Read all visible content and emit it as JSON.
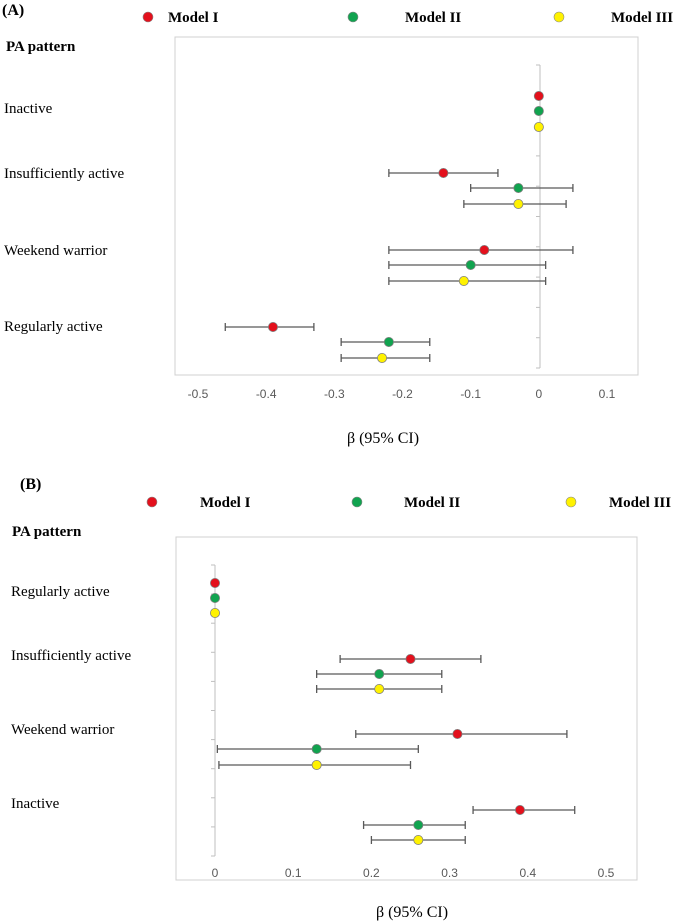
{
  "chart_data": [
    {
      "type": "scatter",
      "panel_label": "(A)",
      "row_header": "PA pattern",
      "xlabel": "β (95% CI)",
      "xlim": [
        -0.5,
        0.1
      ],
      "x_ticks": [
        "-0.5",
        "-0.4",
        "-0.3",
        "-0.2",
        "-0.1",
        "0",
        "0.1"
      ],
      "tick_values": [
        -0.5,
        -0.4,
        -0.3,
        -0.2,
        -0.1,
        0,
        0.1
      ],
      "categories": [
        "Inactive",
        "Insufficiently active",
        "Weekend warrior",
        "Regularly active"
      ],
      "legend": [
        "Model I",
        "Model II",
        "Model III"
      ],
      "colors": [
        "#e3101c",
        "#11a34f",
        "#fff200"
      ],
      "series": [
        {
          "name": "Model I",
          "values": [
            {
              "est": 0,
              "lo": null,
              "hi": null
            },
            {
              "est": -0.14,
              "lo": -0.22,
              "hi": -0.06
            },
            {
              "est": -0.08,
              "lo": -0.22,
              "hi": 0.05
            },
            {
              "est": -0.39,
              "lo": -0.46,
              "hi": -0.33
            }
          ]
        },
        {
          "name": "Model II",
          "values": [
            {
              "est": 0,
              "lo": null,
              "hi": null
            },
            {
              "est": -0.03,
              "lo": -0.1,
              "hi": 0.05
            },
            {
              "est": -0.1,
              "lo": -0.22,
              "hi": 0.01
            },
            {
              "est": -0.22,
              "lo": -0.29,
              "hi": -0.16
            }
          ]
        },
        {
          "name": "Model III",
          "values": [
            {
              "est": 0,
              "lo": null,
              "hi": null
            },
            {
              "est": -0.03,
              "lo": -0.11,
              "hi": 0.04
            },
            {
              "est": -0.11,
              "lo": -0.22,
              "hi": 0.01
            },
            {
              "est": -0.23,
              "lo": -0.29,
              "hi": -0.16
            }
          ]
        }
      ]
    },
    {
      "type": "scatter",
      "panel_label": "(B)",
      "row_header": "PA pattern",
      "xlabel": "β (95% CI)",
      "xlim": [
        0,
        0.5
      ],
      "x_ticks": [
        "0",
        "0.1",
        "0.2",
        "0.3",
        "0.4",
        "0.5"
      ],
      "tick_values": [
        0,
        0.1,
        0.2,
        0.3,
        0.4,
        0.5
      ],
      "categories": [
        "Regularly active",
        "Insufficiently active",
        "Weekend warrior",
        "Inactive"
      ],
      "legend": [
        "Model I",
        "Model II",
        "Model III"
      ],
      "colors": [
        "#e3101c",
        "#11a34f",
        "#fff200"
      ],
      "series": [
        {
          "name": "Model I",
          "values": [
            {
              "est": 0,
              "lo": null,
              "hi": null
            },
            {
              "est": 0.25,
              "lo": 0.16,
              "hi": 0.34
            },
            {
              "est": 0.31,
              "lo": 0.18,
              "hi": 0.45
            },
            {
              "est": 0.39,
              "lo": 0.33,
              "hi": 0.46
            }
          ]
        },
        {
          "name": "Model II",
          "values": [
            {
              "est": 0,
              "lo": null,
              "hi": null
            },
            {
              "est": 0.21,
              "lo": 0.13,
              "hi": 0.29
            },
            {
              "est": 0.13,
              "lo": 0.003,
              "hi": 0.26
            },
            {
              "est": 0.26,
              "lo": 0.19,
              "hi": 0.32
            }
          ]
        },
        {
          "name": "Model III",
          "values": [
            {
              "est": 0,
              "lo": null,
              "hi": null
            },
            {
              "est": 0.21,
              "lo": 0.13,
              "hi": 0.29
            },
            {
              "est": 0.13,
              "lo": 0.005,
              "hi": 0.25
            },
            {
              "est": 0.26,
              "lo": 0.2,
              "hi": 0.32
            }
          ]
        }
      ]
    }
  ]
}
